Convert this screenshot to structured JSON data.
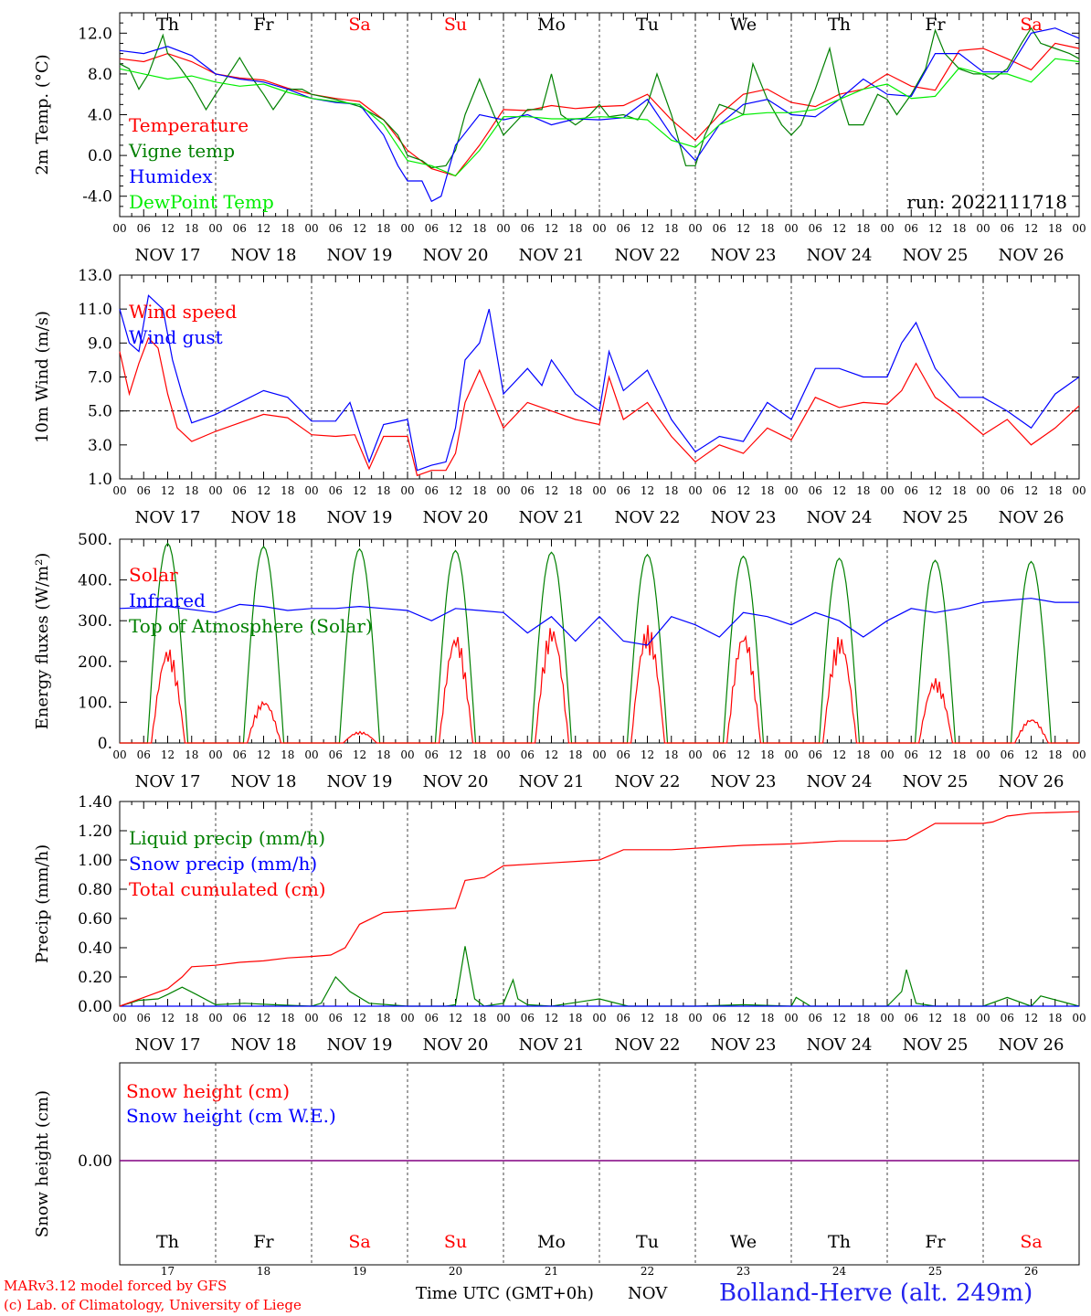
{
  "run_label": "run: 2022111718",
  "footer": {
    "model_line": "MARv3.12 model forced by GFS",
    "credit_line": "(c) Lab. of Climatology, University of Liege",
    "axis_title": "Time UTC (GMT+0h)",
    "month": "NOV",
    "station": "Bolland-Herve (alt. 249m)"
  },
  "days": {
    "weekday_names": [
      "Th",
      "Fr",
      "Sa",
      "Su",
      "Mo",
      "Tu",
      "We",
      "Th",
      "Fr",
      "Sa"
    ],
    "weekend_flags": [
      false,
      false,
      true,
      true,
      false,
      false,
      false,
      false,
      false,
      true
    ],
    "date_labels": [
      "NOV 17",
      "NOV 18",
      "NOV 19",
      "NOV 20",
      "NOV 21",
      "NOV 22",
      "NOV 23",
      "NOV 24",
      "NOV 25",
      "NOV 26"
    ],
    "day_numbers": [
      "17",
      "18",
      "19",
      "20",
      "21",
      "22",
      "23",
      "24",
      "25",
      "26"
    ],
    "hour_ticks": [
      "00",
      "06",
      "12",
      "18"
    ],
    "final_hour": "00"
  },
  "colors": {
    "red": "#ff0000",
    "dark_green": "#008000",
    "blue": "#0000ff",
    "light_green": "#00ee00",
    "purple": "#800080",
    "station_blue": "#2222ee"
  },
  "chart_data": [
    {
      "type": "line",
      "ylabel": "2m Temp. (°C)",
      "ylim": [
        -6,
        14
      ],
      "yticks": [
        "-4.0",
        "0.0",
        "4.0",
        "8.0",
        "12.0"
      ],
      "xlim_days": [
        0,
        10
      ],
      "legend_position": "left",
      "series": [
        {
          "name": "Temperature",
          "color": "#ff0000",
          "x": [
            0,
            0.25,
            0.5,
            0.75,
            1,
            1.25,
            1.5,
            1.75,
            2,
            2.25,
            2.5,
            2.75,
            3,
            3.25,
            3.5,
            3.75,
            4,
            4.25,
            4.5,
            4.75,
            5,
            5.25,
            5.5,
            5.75,
            6,
            6.25,
            6.5,
            6.75,
            7,
            7.25,
            7.5,
            7.75,
            8,
            8.25,
            8.5,
            8.75,
            9,
            9.25,
            9.5,
            9.75,
            10
          ],
          "y": [
            9.5,
            9.2,
            10,
            9.2,
            8,
            7.6,
            7.4,
            6.6,
            6,
            5.6,
            5.3,
            3.5,
            0.5,
            -1.3,
            -2,
            1,
            4.5,
            4.4,
            4.9,
            4.6,
            4.8,
            4.9,
            6,
            3.5,
            1.5,
            4,
            6,
            6.5,
            5.2,
            4.8,
            6,
            6.5,
            8,
            6.8,
            6.4,
            10.3,
            10.5,
            9.5,
            8.4,
            11,
            10.5
          ]
        },
        {
          "name": "Vigne temp",
          "color": "#008000",
          "x": [
            0,
            0.1,
            0.2,
            0.3,
            0.45,
            0.5,
            0.6,
            0.75,
            0.9,
            1,
            1.1,
            1.25,
            1.35,
            1.5,
            1.6,
            1.75,
            1.9,
            2,
            2.25,
            2.5,
            2.75,
            2.9,
            3,
            3.15,
            3.25,
            3.4,
            3.5,
            3.6,
            3.75,
            3.9,
            4,
            4.1,
            4.25,
            4.4,
            4.5,
            4.6,
            4.75,
            4.9,
            5,
            5.1,
            5.25,
            5.4,
            5.5,
            5.6,
            5.75,
            5.9,
            6,
            6.1,
            6.25,
            6.4,
            6.5,
            6.6,
            6.75,
            6.9,
            7,
            7.1,
            7.25,
            7.4,
            7.5,
            7.6,
            7.75,
            7.9,
            8,
            8.1,
            8.25,
            8.4,
            8.5,
            8.6,
            8.75,
            8.9,
            9,
            9.1,
            9.25,
            9.4,
            9.5,
            9.6,
            9.75,
            9.9,
            10
          ],
          "y": [
            9,
            8.5,
            6.5,
            8,
            11.8,
            10,
            9,
            7,
            4.5,
            6,
            7.4,
            9.6,
            8,
            6,
            4.5,
            6.5,
            6.5,
            6,
            5.5,
            4.8,
            3.5,
            2,
            0,
            -0.5,
            -1.2,
            -1,
            0.5,
            4,
            7.5,
            4,
            2,
            3,
            4.5,
            4.5,
            8,
            4,
            3,
            4,
            5,
            3.8,
            4,
            3.5,
            5,
            8,
            4,
            -1,
            -1,
            2,
            5,
            4.5,
            4,
            9,
            5.5,
            3,
            2,
            3,
            6.5,
            10.5,
            6,
            3,
            3,
            6,
            5.5,
            4,
            6,
            8.5,
            12.3,
            10,
            8.5,
            8,
            8,
            7.5,
            8.5,
            11,
            12.5,
            11,
            10.5,
            10,
            9.5
          ]
        },
        {
          "name": "Humidex",
          "color": "#0000ff",
          "x": [
            0,
            0.25,
            0.5,
            0.75,
            1,
            1.25,
            1.5,
            1.75,
            2,
            2.25,
            2.5,
            2.75,
            2.9,
            3,
            3.15,
            3.25,
            3.35,
            3.5,
            3.75,
            4,
            4.25,
            4.5,
            4.75,
            5,
            5.25,
            5.5,
            5.75,
            6,
            6.25,
            6.5,
            6.75,
            7,
            7.25,
            7.5,
            7.75,
            8,
            8.25,
            8.5,
            8.75,
            9,
            9.25,
            9.5,
            9.75,
            10
          ],
          "y": [
            10.3,
            10,
            10.7,
            9.8,
            8,
            7.5,
            7.2,
            6.5,
            5.6,
            5.2,
            5,
            2,
            -1,
            -2.5,
            -2.5,
            -4.5,
            -4,
            1,
            4,
            3.5,
            4,
            3,
            3.6,
            3.5,
            3.7,
            5.5,
            2,
            -0.5,
            3,
            5,
            5.5,
            4,
            3.8,
            5.5,
            7.5,
            6,
            5.8,
            10,
            10,
            8.2,
            8.2,
            12,
            12.5,
            11.5
          ]
        },
        {
          "name": "DewPoint Temp",
          "color": "#00ee00",
          "x": [
            0,
            0.25,
            0.5,
            0.75,
            1,
            1.25,
            1.5,
            1.75,
            2,
            2.25,
            2.5,
            2.75,
            3,
            3.25,
            3.5,
            3.75,
            4,
            4.25,
            4.5,
            4.75,
            5,
            5.25,
            5.5,
            5.75,
            6,
            6.25,
            6.5,
            6.75,
            7,
            7.25,
            7.5,
            7.75,
            8,
            8.25,
            8.5,
            8.75,
            9,
            9.25,
            9.5,
            9.75,
            10
          ],
          "y": [
            8.5,
            8,
            7.5,
            7.8,
            7.2,
            6.8,
            7,
            6.2,
            5.6,
            5.3,
            5,
            3,
            -0.5,
            -1,
            -2,
            0.5,
            3.8,
            3.8,
            3.6,
            3.6,
            3.8,
            3.7,
            3.5,
            1.5,
            0.8,
            3,
            4,
            4.2,
            4.2,
            4.5,
            5.5,
            6.5,
            7,
            5.6,
            5.8,
            8.6,
            8,
            8,
            7.2,
            9.5,
            9.2
          ]
        }
      ]
    },
    {
      "type": "line",
      "ylabel": "10m Wind (m/s)",
      "ylim": [
        1,
        13
      ],
      "yticks": [
        "1.0",
        "3.0",
        "5.0",
        "7.0",
        "9.0",
        "11.0",
        "13.0"
      ],
      "reference_line_y": 5,
      "xlim_days": [
        0,
        10
      ],
      "legend_position": "left",
      "series": [
        {
          "name": "Wind speed",
          "color": "#ff0000",
          "x": [
            0,
            0.1,
            0.2,
            0.3,
            0.4,
            0.5,
            0.6,
            0.75,
            1,
            1.25,
            1.5,
            1.75,
            2,
            2.25,
            2.45,
            2.6,
            2.75,
            3,
            3.1,
            3.25,
            3.4,
            3.5,
            3.6,
            3.75,
            4,
            4.25,
            4.5,
            4.75,
            5,
            5.1,
            5.25,
            5.5,
            5.75,
            6,
            6.25,
            6.5,
            6.75,
            7,
            7.25,
            7.5,
            7.75,
            8,
            8.15,
            8.3,
            8.5,
            8.75,
            9,
            9.25,
            9.5,
            9.75,
            10
          ],
          "y": [
            8.5,
            6,
            7.8,
            9.3,
            8.7,
            6,
            4,
            3.2,
            3.8,
            4.3,
            4.8,
            4.6,
            3.6,
            3.5,
            3.6,
            1.6,
            3.5,
            3.5,
            1.2,
            1.5,
            1.5,
            2.5,
            5.5,
            7.4,
            4,
            5.5,
            5,
            4.5,
            4.2,
            7,
            4.5,
            5.5,
            3.5,
            2,
            3,
            2.5,
            4,
            3.3,
            5.8,
            5.2,
            5.5,
            5.4,
            6.2,
            7.8,
            5.8,
            4.8,
            3.6,
            4.5,
            3,
            4,
            5.3
          ]
        },
        {
          "name": "Wind gust",
          "color": "#0000ff",
          "x": [
            0,
            0.1,
            0.2,
            0.3,
            0.45,
            0.55,
            0.65,
            0.75,
            1,
            1.25,
            1.5,
            1.75,
            2,
            2.25,
            2.4,
            2.6,
            2.75,
            3,
            3.1,
            3.25,
            3.4,
            3.5,
            3.6,
            3.75,
            3.85,
            4,
            4.25,
            4.4,
            4.5,
            4.75,
            5,
            5.1,
            5.25,
            5.5,
            5.75,
            6,
            6.25,
            6.5,
            6.75,
            7,
            7.25,
            7.5,
            7.75,
            8,
            8.15,
            8.3,
            8.5,
            8.75,
            9,
            9.25,
            9.5,
            9.75,
            10
          ],
          "y": [
            11,
            9,
            8.5,
            11.8,
            11,
            8,
            6,
            4.3,
            4.8,
            5.5,
            6.2,
            5.8,
            4.4,
            4.4,
            5.5,
            2,
            4.2,
            4.5,
            1.5,
            1.8,
            2,
            4,
            8,
            9,
            11,
            6,
            7.5,
            6.5,
            8,
            6,
            5,
            8.5,
            6.2,
            7.4,
            4.5,
            2.6,
            3.5,
            3.2,
            5.5,
            4.5,
            7.5,
            7.5,
            7,
            7,
            9,
            10.2,
            7.5,
            5.8,
            5.8,
            5,
            4,
            6,
            7
          ]
        }
      ]
    },
    {
      "type": "line",
      "ylabel": "Energy fluxes (W/m²)",
      "ylim": [
        0,
        500
      ],
      "yticks": [
        "0.",
        "100.",
        "200.",
        "300.",
        "400.",
        "500."
      ],
      "xlim_days": [
        0,
        10
      ],
      "legend_position": "left",
      "series": [
        {
          "name": "Solar",
          "color": "#ff0000",
          "daily_peak_w_m2": [
            235,
            105,
            28,
            270,
            290,
            290,
            275,
            265,
            160,
            60
          ]
        },
        {
          "name": "Infrared",
          "color": "#0000ff",
          "x": [
            0,
            0.5,
            1,
            1.25,
            1.5,
            1.75,
            2,
            2.25,
            2.5,
            2.75,
            3,
            3.25,
            3.5,
            3.75,
            4,
            4.25,
            4.5,
            4.75,
            5,
            5.25,
            5.5,
            5.75,
            6,
            6.25,
            6.5,
            6.75,
            7,
            7.25,
            7.5,
            7.75,
            8,
            8.25,
            8.5,
            8.75,
            9,
            9.25,
            9.5,
            9.75,
            10
          ],
          "y": [
            330,
            335,
            320,
            340,
            335,
            325,
            330,
            330,
            335,
            330,
            325,
            300,
            330,
            325,
            320,
            270,
            310,
            250,
            310,
            250,
            240,
            310,
            290,
            260,
            320,
            310,
            290,
            320,
            300,
            260,
            300,
            330,
            320,
            330,
            345,
            350,
            355,
            345,
            345
          ]
        },
        {
          "name": "Top of Atmosphere (Solar)",
          "color": "#008000",
          "daily_peak_w_m2": [
            490,
            482,
            476,
            472,
            468,
            462,
            458,
            453,
            448,
            445
          ]
        }
      ]
    },
    {
      "type": "line",
      "ylabel": "Precip (mm/h)",
      "ylim": [
        0,
        1.4
      ],
      "yticks": [
        "0.00",
        "0.20",
        "0.40",
        "0.60",
        "0.80",
        "1.00",
        "1.20",
        "1.40"
      ],
      "xlim_days": [
        0,
        10
      ],
      "legend_position": "left",
      "series": [
        {
          "name": "Liquid precip (mm/h)",
          "color": "#008000",
          "x": [
            0,
            0.2,
            0.4,
            0.5,
            0.65,
            0.8,
            1,
            1.3,
            1.6,
            2,
            2.1,
            2.25,
            2.4,
            2.6,
            3,
            3.4,
            3.5,
            3.6,
            3.7,
            3.8,
            4,
            4.1,
            4.15,
            4.25,
            4.5,
            5,
            5.3,
            6,
            6.5,
            7,
            7.05,
            7.2,
            8,
            8.15,
            8.2,
            8.3,
            8.5,
            9,
            9.25,
            9.5,
            9.6,
            10
          ],
          "y": [
            0,
            0.04,
            0.05,
            0.08,
            0.13,
            0.08,
            0.01,
            0.02,
            0.01,
            0,
            0.02,
            0.2,
            0.1,
            0.02,
            0,
            0,
            0.01,
            0.41,
            0.05,
            0,
            0.02,
            0.18,
            0.05,
            0.01,
            0,
            0.05,
            0,
            0,
            0.01,
            0,
            0.06,
            0,
            0,
            0.1,
            0.25,
            0.02,
            0,
            0,
            0.06,
            0,
            0.07,
            0
          ]
        },
        {
          "name": "Snow precip (mm/h)",
          "color": "#0000ff",
          "x": [
            0,
            10
          ],
          "y": [
            0,
            0
          ]
        },
        {
          "name": "Total cumulated (cm)",
          "color": "#ff0000",
          "x": [
            0,
            0.25,
            0.5,
            0.65,
            0.75,
            1,
            1.25,
            1.5,
            1.75,
            2,
            2.2,
            2.35,
            2.5,
            2.75,
            3,
            3.5,
            3.6,
            3.8,
            4,
            4.5,
            4.75,
            5,
            5.25,
            5.5,
            5.75,
            6,
            6.5,
            7,
            7.5,
            8,
            8.2,
            8.5,
            9,
            9.1,
            9.25,
            9.5,
            10
          ],
          "y": [
            0,
            0.06,
            0.12,
            0.2,
            0.27,
            0.28,
            0.3,
            0.31,
            0.33,
            0.34,
            0.35,
            0.4,
            0.56,
            0.64,
            0.65,
            0.67,
            0.86,
            0.88,
            0.96,
            0.98,
            0.99,
            1.0,
            1.07,
            1.07,
            1.07,
            1.08,
            1.1,
            1.11,
            1.13,
            1.13,
            1.14,
            1.25,
            1.25,
            1.26,
            1.3,
            1.32,
            1.33
          ]
        }
      ]
    },
    {
      "type": "line",
      "ylabel": "Snow height (cm)",
      "yticks": [
        "0.00"
      ],
      "xlim_days": [
        0,
        10
      ],
      "legend_position": "left",
      "series": [
        {
          "name": "Snow height (cm)",
          "color": "#ff0000",
          "x": [
            0,
            10
          ],
          "y": [
            0,
            0
          ]
        },
        {
          "name": "Snow height (cm W.E.)",
          "color": "#0000ff",
          "x": [
            0,
            10
          ],
          "y": [
            0,
            0
          ]
        }
      ]
    }
  ]
}
